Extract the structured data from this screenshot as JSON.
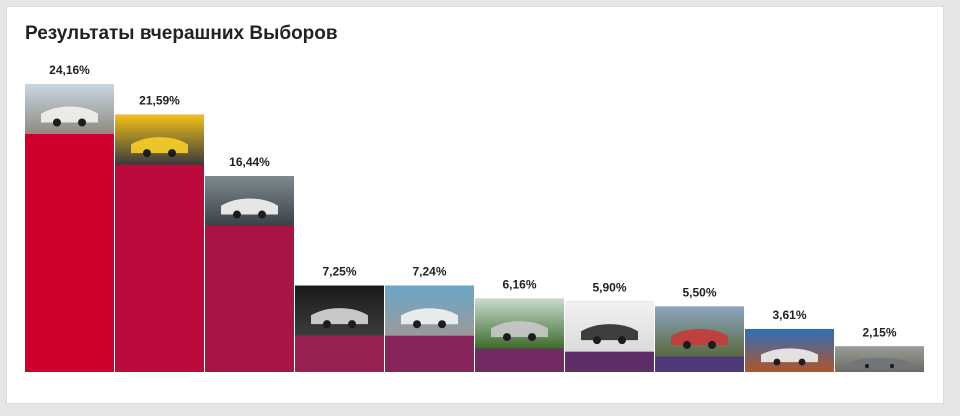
{
  "title": "Результаты вчерашних Выборов",
  "chart_data": {
    "type": "bar",
    "title": "Результаты вчерашних Выборов",
    "xlabel": "",
    "ylabel": "",
    "ylim": [
      0,
      24.16
    ],
    "grid": false,
    "legend": "none",
    "values": [
      24.16,
      21.59,
      16.44,
      7.25,
      7.24,
      6.16,
      5.9,
      5.5,
      3.61,
      2.15
    ],
    "data_labels": [
      "24,16%",
      "21,59%",
      "16,44%",
      "7,25%",
      "7,24%",
      "6,16%",
      "5,90%",
      "5,50%",
      "3,61%",
      "2,15%"
    ],
    "colors": [
      "#d0002e",
      "#bd0a3c",
      "#a91446",
      "#982052",
      "#872459",
      "#722a62",
      "#5f2e68",
      "#4e3a78",
      "#344684",
      "#1d4c92"
    ],
    "photo_subjects": [
      "white-vintage-sedan",
      "yellow-vintage-car",
      "white-sports-car-parking",
      "car-interior",
      "white-car-person",
      "silver-convertible",
      "black-suv-studio",
      "red-car-mountain-person",
      "white-suv-sunset",
      "gray-car-street"
    ]
  }
}
